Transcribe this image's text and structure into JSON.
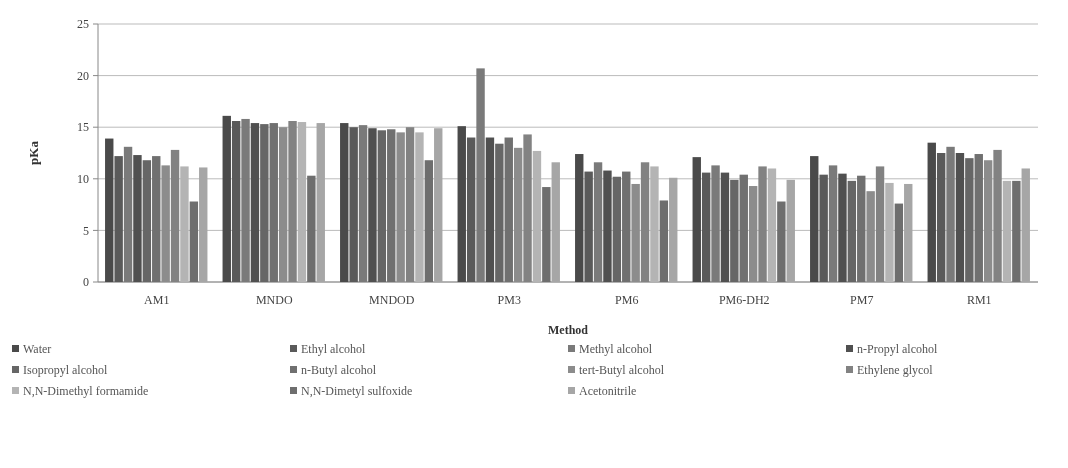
{
  "chart_data": {
    "type": "bar",
    "xlabel": "Method",
    "ylabel": "pKa",
    "categories": [
      "AM1",
      "MNDO",
      "MNDOD",
      "PM3",
      "PM6",
      "PM6-DH2",
      "PM7",
      "RM1"
    ],
    "series": [
      {
        "name": "Water",
        "color": "#4a4a4a",
        "values": [
          13.9,
          16.1,
          15.4,
          15.1,
          12.4,
          12.1,
          12.2,
          13.5
        ]
      },
      {
        "name": "Ethyl alcohol",
        "color": "#5a5a5a",
        "values": [
          12.2,
          15.6,
          15.0,
          14.0,
          10.7,
          10.6,
          10.4,
          12.5
        ]
      },
      {
        "name": "Methyl alcohol",
        "color": "#7a7a7a",
        "values": [
          13.1,
          15.8,
          15.2,
          20.7,
          11.6,
          11.3,
          11.3,
          13.1
        ]
      },
      {
        "name": "n-Propyl alcohol",
        "color": "#505050",
        "values": [
          12.3,
          15.4,
          14.9,
          14.0,
          10.8,
          10.6,
          10.5,
          12.5
        ]
      },
      {
        "name": "Isopropyl alcohol",
        "color": "#666666",
        "values": [
          11.8,
          15.3,
          14.7,
          13.4,
          10.2,
          9.9,
          9.8,
          12.0
        ]
      },
      {
        "name": "n-Butyl alcohol",
        "color": "#707070",
        "values": [
          12.2,
          15.4,
          14.8,
          14.0,
          10.7,
          10.4,
          10.3,
          12.4
        ]
      },
      {
        "name": "tert-Butyl alcohol",
        "color": "#8c8c8c",
        "values": [
          11.3,
          15.0,
          14.5,
          13.0,
          9.5,
          9.3,
          8.8,
          11.8
        ]
      },
      {
        "name": "Ethylene glycol",
        "color": "#828282",
        "values": [
          12.8,
          15.6,
          15.0,
          14.3,
          11.6,
          11.2,
          11.2,
          12.8
        ]
      },
      {
        "name": "N,N-Dimethyl formamide",
        "color": "#b4b4b4",
        "values": [
          11.2,
          15.5,
          14.5,
          12.7,
          11.2,
          11.0,
          9.6,
          9.8
        ]
      },
      {
        "name": "N,N-Dimetyl sulfoxide",
        "color": "#6e6e6e",
        "values": [
          7.8,
          10.3,
          11.8,
          9.2,
          7.9,
          7.8,
          7.6,
          9.8
        ]
      },
      {
        "name": "Acetonitrile",
        "color": "#a6a6a6",
        "values": [
          11.1,
          15.4,
          14.9,
          11.6,
          10.1,
          9.9,
          9.5,
          11.0
        ]
      }
    ],
    "ylim": [
      0,
      25
    ],
    "yticks": [
      0,
      5,
      10,
      15,
      20,
      25
    ],
    "grid": "y",
    "legend": "bottom"
  }
}
